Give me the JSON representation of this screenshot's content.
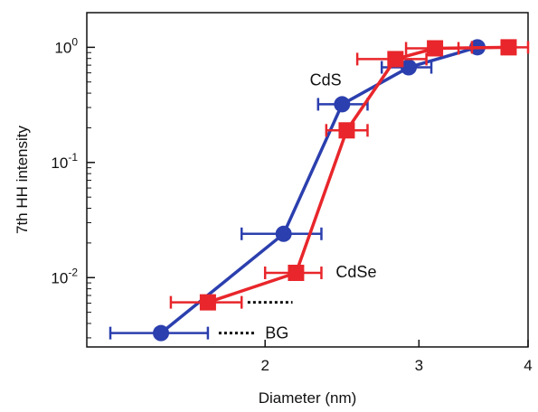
{
  "chart_data": {
    "type": "scatter",
    "title": "",
    "xlabel": "Diameter (nm)",
    "ylabel": "7th HH intensity",
    "x_scale": "log",
    "y_scale": "log",
    "xlim": [
      1.25,
      4.0
    ],
    "ylim": [
      0.0025,
      2.0
    ],
    "x_ticks": [
      {
        "value": 2,
        "label": "2"
      },
      {
        "value": 3,
        "label": "3"
      },
      {
        "value": 4,
        "label": "4"
      }
    ],
    "y_ticks": [
      {
        "value": 1,
        "base": "10",
        "exp": "0"
      },
      {
        "value": 0.1,
        "base": "10",
        "exp": "-1"
      },
      {
        "value": 0.01,
        "base": "10",
        "exp": "-2"
      }
    ],
    "grid": false,
    "series": [
      {
        "name": "CdS",
        "color": "#2b3fae",
        "marker": "circle",
        "points": [
          {
            "x": 1.52,
            "y": 0.0033,
            "xlo": 1.33,
            "xhi": 1.72
          },
          {
            "x": 2.1,
            "y": 0.024,
            "xlo": 1.88,
            "xhi": 2.32
          },
          {
            "x": 2.45,
            "y": 0.32,
            "xlo": 2.3,
            "xhi": 2.62
          },
          {
            "x": 2.92,
            "y": 0.67,
            "xlo": 2.72,
            "xhi": 3.1
          },
          {
            "x": 3.5,
            "y": 1.0
          }
        ]
      },
      {
        "name": "CdSe",
        "color": "#e8262b",
        "marker": "square",
        "points": [
          {
            "x": 1.72,
            "y": 0.0061,
            "xlo": 1.56,
            "xhi": 1.88
          },
          {
            "x": 2.17,
            "y": 0.011,
            "xlo": 2.0,
            "xhi": 2.32
          },
          {
            "x": 2.48,
            "y": 0.19,
            "xlo": 2.35,
            "xhi": 2.62
          },
          {
            "x": 2.82,
            "y": 0.79,
            "xlo": 2.55,
            "xhi": 3.06
          },
          {
            "x": 3.13,
            "y": 0.98,
            "xlo": 2.9,
            "xhi": 3.33
          },
          {
            "x": 3.8,
            "y": 1.0,
            "xlo": 3.45,
            "xhi": 4.0
          }
        ]
      }
    ],
    "annotations": [
      {
        "text": "CdS",
        "x": 2.25,
        "y": 0.52
      },
      {
        "text": "CdSe",
        "x": 2.41,
        "y": 0.0112
      },
      {
        "text": "BG",
        "x": 2.0,
        "y": 0.0033
      }
    ],
    "baselines": [
      {
        "x1": 1.91,
        "x2": 2.15,
        "y": 0.0061
      },
      {
        "x1": 1.77,
        "x2": 1.95,
        "y": 0.0033
      }
    ]
  }
}
